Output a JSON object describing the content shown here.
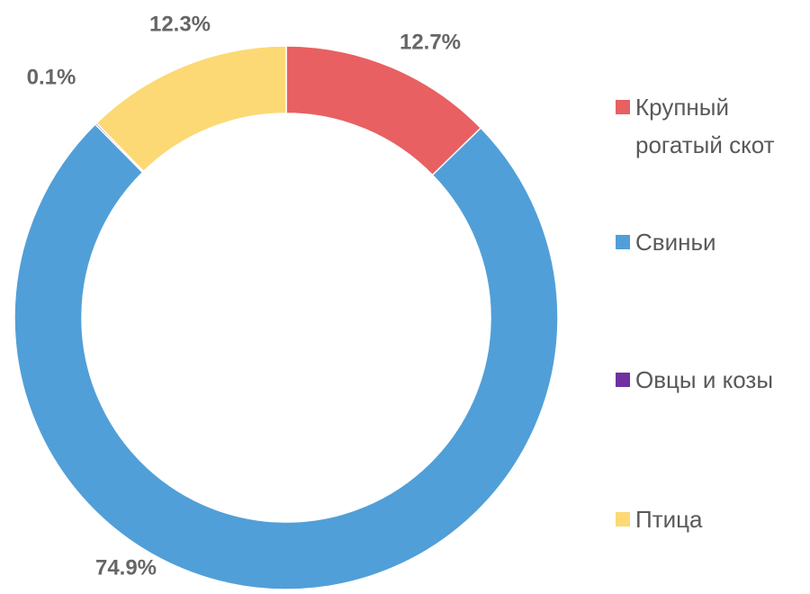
{
  "chart_data": {
    "type": "donut",
    "categories": [
      "Крупный рогатый скот",
      "Свиньи",
      "Овцы и козы",
      "Птица"
    ],
    "values": [
      12.7,
      74.9,
      0.1,
      12.3
    ],
    "value_labels": [
      "12.7%",
      "74.9%",
      "0.1%",
      "12.3%"
    ],
    "colors": [
      "#e86062",
      "#519fd8",
      "#7030a0",
      "#fcd975"
    ],
    "legend": "right"
  }
}
